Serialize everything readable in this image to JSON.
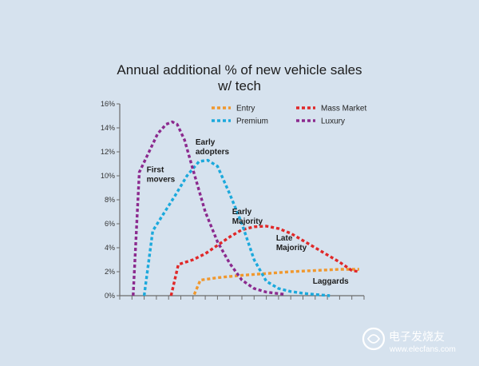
{
  "chart_data": {
    "type": "line",
    "title_line1": "Annual additional % of new vehicle sales",
    "title_line2": "w/ tech",
    "xlabel": "",
    "ylabel": "",
    "ylim": [
      0,
      16
    ],
    "y_ticks": [
      "0%",
      "2%",
      "4%",
      "6%",
      "8%",
      "10%",
      "12%",
      "14%",
      "16%"
    ],
    "x_range": [
      0,
      20
    ],
    "x_tick_count": 21,
    "legend_position": "top-right",
    "series": [
      {
        "name": "Entry",
        "color": "#f0982e",
        "x": [
          6.1,
          6.6,
          8,
          10,
          12,
          14,
          16,
          18,
          19.6
        ],
        "values": [
          0.1,
          1.3,
          1.5,
          1.7,
          1.85,
          2.0,
          2.1,
          2.2,
          2.2
        ]
      },
      {
        "name": "Mass Market",
        "color": "#e02828",
        "x": [
          4.2,
          4.8,
          6,
          7,
          8,
          9,
          10,
          11,
          12,
          13,
          14,
          15,
          16,
          17,
          18,
          19,
          19.6
        ],
        "values": [
          0,
          2.6,
          3.0,
          3.5,
          4.2,
          4.9,
          5.5,
          5.75,
          5.8,
          5.6,
          5.2,
          4.6,
          4.0,
          3.4,
          2.8,
          2.1,
          2.0
        ]
      },
      {
        "name": "Premium",
        "color": "#1ca9dc",
        "x": [
          2.0,
          2.7,
          3.5,
          4.5,
          5.5,
          6.5,
          7.2,
          8,
          9,
          10,
          11,
          12,
          13,
          14,
          15,
          16,
          17.2
        ],
        "values": [
          0,
          5.4,
          6.7,
          8.3,
          10.0,
          11.2,
          11.3,
          10.8,
          8.5,
          6.0,
          3.0,
          1.2,
          0.6,
          0.35,
          0.2,
          0.1,
          0.0
        ]
      },
      {
        "name": "Luxury",
        "color": "#8b2a8e",
        "x": [
          1.1,
          1.6,
          2.4,
          3.1,
          3.8,
          4.3,
          4.7,
          5.3,
          6,
          7,
          8,
          9,
          10,
          11,
          12,
          13.6
        ],
        "values": [
          0,
          10.3,
          12.0,
          13.5,
          14.3,
          14.5,
          14.3,
          13.0,
          10.5,
          7.0,
          4.5,
          2.7,
          1.3,
          0.6,
          0.3,
          0.1
        ]
      }
    ],
    "annotations": [
      {
        "lines": [
          "First",
          "movers"
        ],
        "x": 2.2,
        "y": 10.3
      },
      {
        "lines": [
          "Early",
          "adopters"
        ],
        "x": 6.2,
        "y": 12.6
      },
      {
        "lines": [
          "Early",
          "Majority"
        ],
        "x": 9.2,
        "y": 6.8
      },
      {
        "lines": [
          "Late",
          "Majority"
        ],
        "x": 12.8,
        "y": 4.6
      },
      {
        "lines": [
          "Laggards"
        ],
        "x": 15.8,
        "y": 1.0
      }
    ]
  },
  "watermark": {
    "line1": "电子发烧友",
    "line2": "www.elecfans.com"
  }
}
